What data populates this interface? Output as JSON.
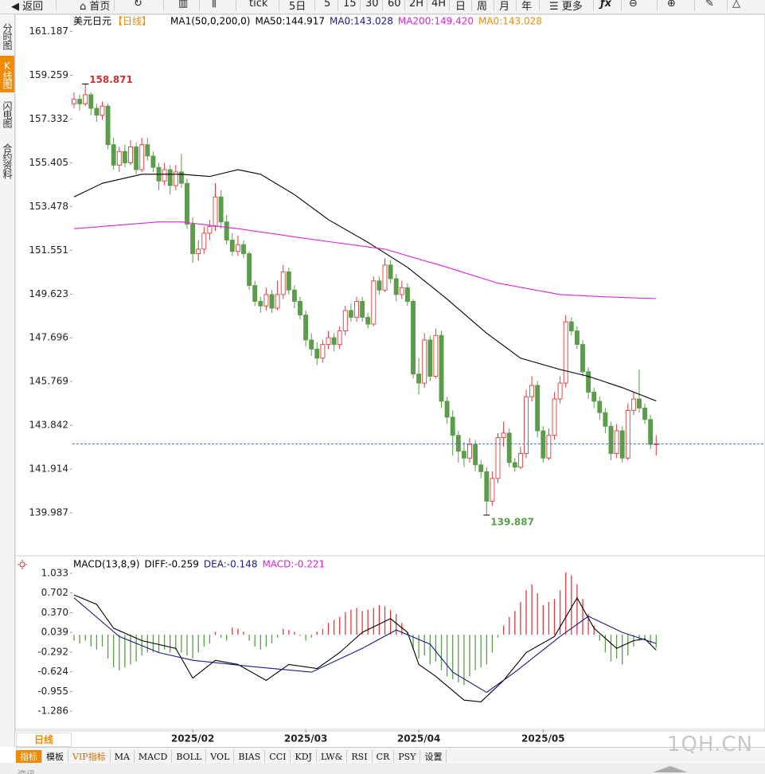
{
  "ui": {
    "toolbar": [
      "返回",
      "首页",
      "tick",
      "5日",
      "5",
      "15",
      "30",
      "60",
      "2H",
      "4H",
      "日",
      "周",
      "月",
      "年",
      "更多"
    ],
    "side_tabs": [
      "分时图",
      "K线图",
      "闪电图",
      "合约资料"
    ],
    "period_tab": "日线",
    "bottom_tools": [
      "指标",
      "模板",
      "VIP指标",
      "MA",
      "MACD",
      "BOLL",
      "VOL",
      "BIAS",
      "CCI",
      "KDJ",
      "LW&",
      "RSI",
      "CR",
      "PSY",
      "设置"
    ],
    "watermark": "1QH.CN",
    "footer": "资讯"
  },
  "chart_data": [
    {
      "type": "candlestick",
      "title": "美元日元",
      "period": "【日线】",
      "indicator": "MA1(50,0,200,0)",
      "up_color": "#e03c3c",
      "down_color": "#5b9d48",
      "last_line_color": "#3a6fc4",
      "high_color": "#d03030",
      "low_color": "#5b9d48",
      "ylim": [
        138.2,
        161.8
      ],
      "yticks": [
        161.187,
        159.259,
        157.332,
        155.405,
        153.478,
        151.551,
        149.623,
        147.696,
        145.769,
        143.842,
        141.914,
        139.987
      ],
      "categories": [
        null,
        null,
        null,
        null,
        null,
        null,
        null,
        null,
        null,
        null,
        null,
        null,
        null,
        null,
        null,
        null,
        null,
        null,
        null,
        null,
        null,
        "2025/02",
        null,
        null,
        null,
        null,
        null,
        null,
        null,
        null,
        null,
        null,
        null,
        null,
        null,
        null,
        null,
        null,
        null,
        null,
        null,
        "2025/03",
        null,
        null,
        null,
        null,
        null,
        null,
        null,
        null,
        null,
        null,
        null,
        null,
        null,
        null,
        null,
        null,
        null,
        null,
        null,
        "2025/04",
        null,
        null,
        null,
        null,
        null,
        null,
        null,
        null,
        null,
        null,
        null,
        null,
        null,
        null,
        null,
        null,
        null,
        null,
        null,
        null,
        null,
        "2025/05",
        null,
        null,
        null,
        null,
        null,
        null,
        null,
        null,
        null,
        null,
        null,
        null,
        null,
        null,
        null,
        null,
        null,
        null,
        null,
        null
      ],
      "ohlc": [
        [
          158.0,
          158.5,
          157.8,
          158.2
        ],
        [
          158.2,
          158.4,
          157.7,
          158.0
        ],
        [
          158.0,
          158.871,
          157.9,
          158.4
        ],
        [
          158.4,
          158.5,
          157.5,
          157.8
        ],
        [
          157.8,
          158.0,
          157.2,
          157.5
        ],
        [
          157.5,
          158.1,
          157.3,
          157.9
        ],
        [
          157.9,
          158.0,
          156.0,
          156.2
        ],
        [
          156.2,
          156.5,
          155.1,
          155.3
        ],
        [
          155.3,
          156.1,
          155.0,
          155.9
        ],
        [
          155.9,
          156.2,
          155.2,
          155.4
        ],
        [
          155.4,
          156.4,
          155.3,
          156.1
        ],
        [
          156.1,
          156.3,
          154.9,
          155.1
        ],
        [
          155.1,
          156.5,
          155.0,
          156.2
        ],
        [
          156.2,
          156.5,
          155.5,
          155.7
        ],
        [
          155.7,
          155.9,
          155.0,
          155.2
        ],
        [
          155.2,
          155.4,
          154.2,
          154.6
        ],
        [
          154.6,
          155.4,
          154.4,
          155.1
        ],
        [
          155.1,
          155.3,
          154.0,
          154.4
        ],
        [
          154.4,
          155.3,
          154.2,
          155.0
        ],
        [
          155.0,
          155.8,
          154.3,
          154.5
        ],
        [
          154.5,
          154.7,
          152.5,
          152.7
        ],
        [
          152.7,
          153.0,
          151.0,
          151.4
        ],
        [
          151.4,
          152.0,
          151.1,
          151.6
        ],
        [
          151.6,
          152.6,
          151.4,
          152.3
        ],
        [
          152.3,
          152.9,
          152.0,
          152.6
        ],
        [
          152.6,
          154.5,
          152.4,
          153.9
        ],
        [
          153.9,
          154.2,
          152.5,
          152.8
        ],
        [
          152.8,
          153.1,
          151.8,
          152.0
        ],
        [
          152.0,
          152.3,
          151.3,
          151.5
        ],
        [
          151.5,
          152.2,
          151.3,
          151.8
        ],
        [
          151.8,
          152.0,
          151.2,
          151.4
        ],
        [
          151.4,
          151.5,
          149.8,
          150.0
        ],
        [
          150.0,
          150.2,
          149.1,
          149.3
        ],
        [
          149.3,
          149.5,
          148.8,
          149.1
        ],
        [
          149.1,
          149.9,
          148.9,
          149.6
        ],
        [
          149.6,
          149.8,
          148.8,
          149.0
        ],
        [
          149.0,
          150.2,
          148.9,
          149.6
        ],
        [
          149.6,
          150.9,
          149.4,
          150.6
        ],
        [
          150.6,
          150.8,
          149.6,
          149.8
        ],
        [
          149.8,
          150.0,
          149.0,
          149.3
        ],
        [
          149.3,
          149.5,
          148.5,
          148.7
        ],
        [
          148.7,
          148.9,
          147.3,
          147.6
        ],
        [
          147.6,
          147.9,
          146.9,
          147.2
        ],
        [
          147.2,
          147.5,
          146.5,
          146.8
        ],
        [
          146.8,
          147.6,
          146.6,
          147.4
        ],
        [
          147.4,
          148.0,
          147.2,
          147.7
        ],
        [
          147.7,
          147.9,
          147.1,
          147.4
        ],
        [
          147.4,
          148.2,
          147.2,
          148.0
        ],
        [
          148.0,
          149.1,
          147.8,
          148.9
        ],
        [
          148.9,
          149.2,
          148.4,
          148.6
        ],
        [
          148.6,
          149.5,
          148.4,
          149.3
        ],
        [
          149.3,
          149.5,
          148.4,
          148.6
        ],
        [
          148.6,
          148.8,
          148.1,
          148.3
        ],
        [
          148.3,
          150.4,
          148.2,
          150.2
        ],
        [
          150.2,
          150.4,
          149.6,
          149.8
        ],
        [
          149.8,
          151.2,
          149.7,
          150.9
        ],
        [
          150.9,
          151.1,
          150.1,
          150.3
        ],
        [
          150.3,
          150.5,
          149.3,
          149.6
        ],
        [
          149.6,
          150.2,
          149.4,
          149.9
        ],
        [
          149.9,
          150.1,
          149.1,
          149.3
        ],
        [
          149.3,
          149.4,
          145.9,
          146.1
        ],
        [
          146.1,
          146.8,
          145.2,
          145.7
        ],
        [
          145.7,
          147.9,
          145.5,
          147.6
        ],
        [
          147.6,
          147.8,
          145.8,
          146.0
        ],
        [
          146.0,
          148.1,
          145.9,
          147.8
        ],
        [
          147.8,
          148.0,
          144.6,
          144.9
        ],
        [
          144.9,
          145.1,
          143.9,
          144.2
        ],
        [
          144.2,
          144.5,
          142.5,
          143.4
        ],
        [
          143.4,
          143.6,
          142.2,
          142.7
        ],
        [
          142.7,
          143.1,
          142.0,
          142.4
        ],
        [
          142.4,
          143.3,
          142.2,
          143.0
        ],
        [
          143.0,
          143.2,
          141.8,
          142.1
        ],
        [
          142.1,
          142.3,
          141.5,
          141.8
        ],
        [
          141.8,
          142.0,
          139.887,
          140.5
        ],
        [
          140.5,
          141.8,
          140.3,
          141.5
        ],
        [
          141.5,
          143.5,
          141.3,
          143.3
        ],
        [
          143.3,
          144.0,
          142.9,
          143.5
        ],
        [
          143.5,
          143.7,
          142.0,
          142.2
        ],
        [
          142.2,
          142.4,
          141.8,
          142.0
        ],
        [
          142.0,
          142.9,
          141.9,
          142.6
        ],
        [
          142.6,
          145.4,
          142.4,
          145.1
        ],
        [
          145.1,
          146.0,
          144.9,
          145.6
        ],
        [
          145.6,
          145.8,
          143.3,
          143.6
        ],
        [
          143.6,
          143.8,
          142.2,
          142.4
        ],
        [
          142.4,
          143.7,
          142.3,
          143.4
        ],
        [
          143.4,
          145.3,
          143.2,
          145.0
        ],
        [
          145.0,
          146.0,
          144.8,
          145.7
        ],
        [
          145.7,
          148.7,
          145.5,
          148.4
        ],
        [
          148.4,
          148.6,
          147.8,
          148.0
        ],
        [
          148.0,
          148.2,
          147.2,
          147.4
        ],
        [
          147.4,
          147.6,
          146.0,
          146.2
        ],
        [
          146.2,
          146.4,
          145.0,
          145.3
        ],
        [
          145.3,
          145.5,
          144.6,
          144.9
        ],
        [
          144.9,
          145.1,
          144.1,
          144.4
        ],
        [
          144.4,
          144.6,
          143.5,
          143.8
        ],
        [
          143.8,
          144.0,
          142.3,
          142.6
        ],
        [
          142.6,
          143.9,
          142.4,
          143.6
        ],
        [
          143.6,
          143.8,
          142.2,
          142.4
        ],
        [
          142.4,
          144.8,
          142.3,
          144.5
        ],
        [
          144.5,
          145.3,
          144.3,
          145.0
        ],
        [
          145.0,
          146.3,
          144.4,
          144.6
        ],
        [
          144.6,
          144.8,
          143.9,
          144.1
        ],
        [
          144.1,
          144.3,
          142.8,
          143.0
        ],
        [
          143.0,
          143.4,
          142.5,
          143.028
        ]
      ],
      "series": [
        {
          "name": "MA50:144.917",
          "color": "#000000",
          "x": [
            0,
            5,
            12,
            19,
            24,
            29,
            33,
            39,
            45,
            52,
            59,
            66,
            73,
            79,
            86,
            91,
            97,
            103
          ],
          "values": [
            153.9,
            154.5,
            154.9,
            154.9,
            154.8,
            155.1,
            154.9,
            154.0,
            152.9,
            151.9,
            150.8,
            149.4,
            147.9,
            146.8,
            146.3,
            146.0,
            145.5,
            144.917
          ]
        },
        {
          "name": "MA200:149.420",
          "color": "#e020e0",
          "x": [
            0,
            15,
            19,
            29,
            43,
            55,
            66,
            75,
            86,
            94,
            103
          ],
          "values": [
            152.5,
            152.8,
            152.8,
            152.5,
            152.0,
            151.6,
            150.8,
            150.1,
            149.6,
            149.5,
            149.42
          ]
        }
      ],
      "extra_legend": [
        {
          "text": "MA0:143.028",
          "color": "#1a1a8c"
        },
        {
          "text": "MA0:143.028",
          "color": "#f08a00"
        }
      ]
    },
    {
      "type": "macd",
      "title": "MACD(13,8,9)",
      "up_color": "#e03c3c",
      "down_color": "#5b9d48",
      "ylim": [
        -1.58,
        1.14
      ],
      "yticks": [
        1.033,
        0.702,
        {
          "value": 0.37,
          "label": "0.370"
        },
        0.039,
        -0.292,
        -0.624,
        -0.955,
        -1.286
      ],
      "values": [
        -0.1,
        -0.15,
        -0.1,
        -0.2,
        -0.25,
        -0.2,
        -0.4,
        -0.55,
        -0.6,
        -0.55,
        -0.5,
        -0.45,
        -0.35,
        -0.3,
        -0.3,
        -0.3,
        -0.25,
        -0.3,
        -0.25,
        -0.3,
        -0.35,
        -0.4,
        -0.3,
        -0.2,
        -0.15,
        0.05,
        -0.05,
        -0.1,
        0.12,
        0.1,
        0.05,
        -0.1,
        -0.2,
        -0.25,
        -0.2,
        -0.15,
        -0.05,
        0.1,
        0.08,
        0.05,
        -0.02,
        -0.1,
        -0.05,
        0.05,
        0.1,
        0.2,
        0.25,
        0.3,
        0.38,
        0.42,
        0.45,
        0.4,
        0.42,
        0.45,
        0.5,
        0.48,
        0.42,
        0.35,
        0.2,
        0.05,
        -0.25,
        -0.4,
        -0.35,
        -0.5,
        -0.45,
        -0.6,
        -0.7,
        -0.75,
        -0.8,
        -0.85,
        -0.7,
        -0.6,
        -0.55,
        -0.5,
        -0.3,
        -0.05,
        0.15,
        0.3,
        0.4,
        0.55,
        0.75,
        0.85,
        0.7,
        0.5,
        0.55,
        0.6,
        0.75,
        1.05,
        1.0,
        0.85,
        0.6,
        0.35,
        0.15,
        -0.1,
        -0.3,
        -0.45,
        -0.4,
        -0.5,
        -0.35,
        -0.2,
        -0.1,
        -0.1,
        -0.15,
        -0.221
      ],
      "series": [
        {
          "name": "DIFF:-0.259",
          "color": "#000000",
          "x": [
            0,
            4,
            7,
            12,
            18,
            21,
            25,
            29,
            34,
            38,
            43,
            47,
            51,
            56,
            59,
            61,
            64,
            69,
            72,
            76,
            80,
            85,
            89,
            92,
            96,
            99,
            101,
            103
          ],
          "values": [
            0.67,
            0.51,
            0.11,
            -0.1,
            -0.23,
            -0.73,
            -0.43,
            -0.5,
            -0.77,
            -0.5,
            -0.57,
            -0.3,
            0.04,
            0.27,
            0.04,
            -0.5,
            -0.7,
            -1.1,
            -1.13,
            -0.77,
            -0.3,
            -0.03,
            0.62,
            0.11,
            -0.23,
            -0.1,
            -0.07,
            -0.259
          ]
        },
        {
          "name": "DEA:-0.148",
          "color": "#1a1a8c",
          "x": [
            0,
            8,
            15,
            21,
            25,
            32,
            42,
            51,
            57,
            63,
            67,
            73,
            78,
            86,
            91,
            97,
            103
          ],
          "values": [
            0.62,
            -0.03,
            -0.3,
            -0.43,
            -0.47,
            -0.54,
            -0.63,
            -0.23,
            0.08,
            -0.16,
            -0.63,
            -0.97,
            -0.63,
            -0.03,
            0.31,
            0.04,
            -0.148
          ]
        }
      ],
      "histogram_legend": {
        "text": "MACD:-0.221",
        "color": "#e020e0"
      }
    }
  ]
}
